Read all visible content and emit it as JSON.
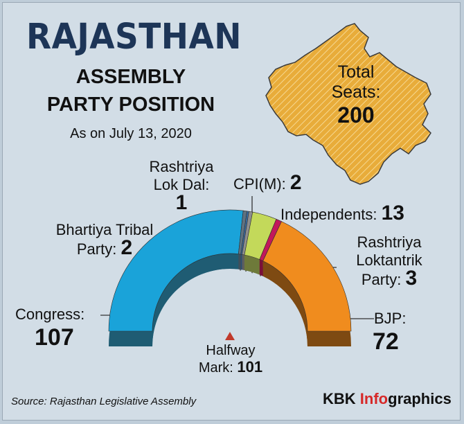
{
  "header": {
    "title": "RAJASTHAN",
    "subtitle_line1": "ASSEMBLY",
    "subtitle_line2": "PARTY POSITION",
    "date": "As on July 13, 2020"
  },
  "map": {
    "label_line1": "Total",
    "label_line2": "Seats:",
    "total": "200",
    "fill_color": "#e8ac3a"
  },
  "halfway": {
    "line1": "Halfway",
    "line2_prefix": "Mark:",
    "value": "101"
  },
  "labels": {
    "congress": "Congress:",
    "congress_value": "107",
    "bjp": "BJP:",
    "bjp_value": "72",
    "btp_line1": "Bhartiya Tribal",
    "btp_line2": "Party:",
    "btp_value": "2",
    "rld_line1": "Rashtriya",
    "rld_line2": "Lok Dal:",
    "rld_value": "1",
    "cpim": "CPI(M):",
    "cpim_value": "2",
    "ind": "Independents:",
    "ind_value": "13",
    "rlp_line1": "Rashtriya",
    "rlp_line2": "Loktantrik",
    "rlp_line3": "Party:",
    "rlp_value": "3"
  },
  "footer": {
    "source": "Source: Rajasthan Legislative Assembly",
    "brand_prefix": "KBK",
    "brand_accent": "Info",
    "brand_suffix": "graphics"
  },
  "chart_data": {
    "type": "pie",
    "style": "semicircle-donut",
    "total": 200,
    "halfway_mark": 101,
    "categories": [
      "Congress",
      "Bhartiya Tribal Party",
      "Rashtriya Lok Dal",
      "CPI(M)",
      "Independents",
      "Rashtriya Loktantrik Party",
      "BJP"
    ],
    "values": [
      107,
      2,
      1,
      2,
      13,
      3,
      72
    ],
    "colors": [
      "#1aa3d9",
      "#5f7280",
      "#3a6ea5",
      "#8e8e8e",
      "#c3d95a",
      "#c2185b",
      "#f08c1e"
    ],
    "side_colors": [
      "#1f5c73",
      "#3f4f5b",
      "#2c4f73",
      "#5e5e5e",
      "#6e7a3a",
      "#7a1038",
      "#7e4a12"
    ]
  }
}
